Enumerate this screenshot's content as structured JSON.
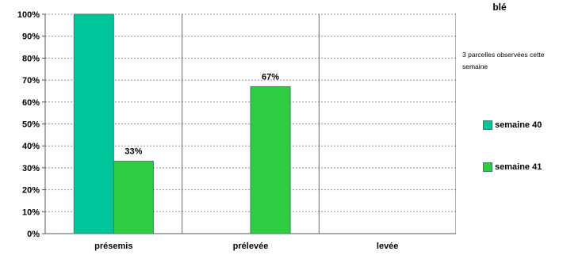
{
  "chart_data": {
    "type": "bar",
    "title": "blé",
    "subtitle": "3 parcelles observées cette semaine",
    "categories": [
      "présemis",
      "prélevée",
      "levée"
    ],
    "series": [
      {
        "name": "semaine 40",
        "values": [
          100,
          0,
          0
        ],
        "color": "#00c49a"
      },
      {
        "name": "semaine 41",
        "values": [
          33,
          67,
          0
        ],
        "color": "#2ecc40"
      }
    ],
    "data_labels": [
      {
        "series": 1,
        "category": 0,
        "text": "33%"
      },
      {
        "series": 1,
        "category": 1,
        "text": "67%"
      }
    ],
    "ylim": [
      0,
      100
    ],
    "yticks": [
      "0%",
      "10%",
      "20%",
      "30%",
      "40%",
      "50%",
      "60%",
      "70%",
      "80%",
      "90%",
      "100%"
    ],
    "grid": true,
    "legend_position": "right"
  }
}
